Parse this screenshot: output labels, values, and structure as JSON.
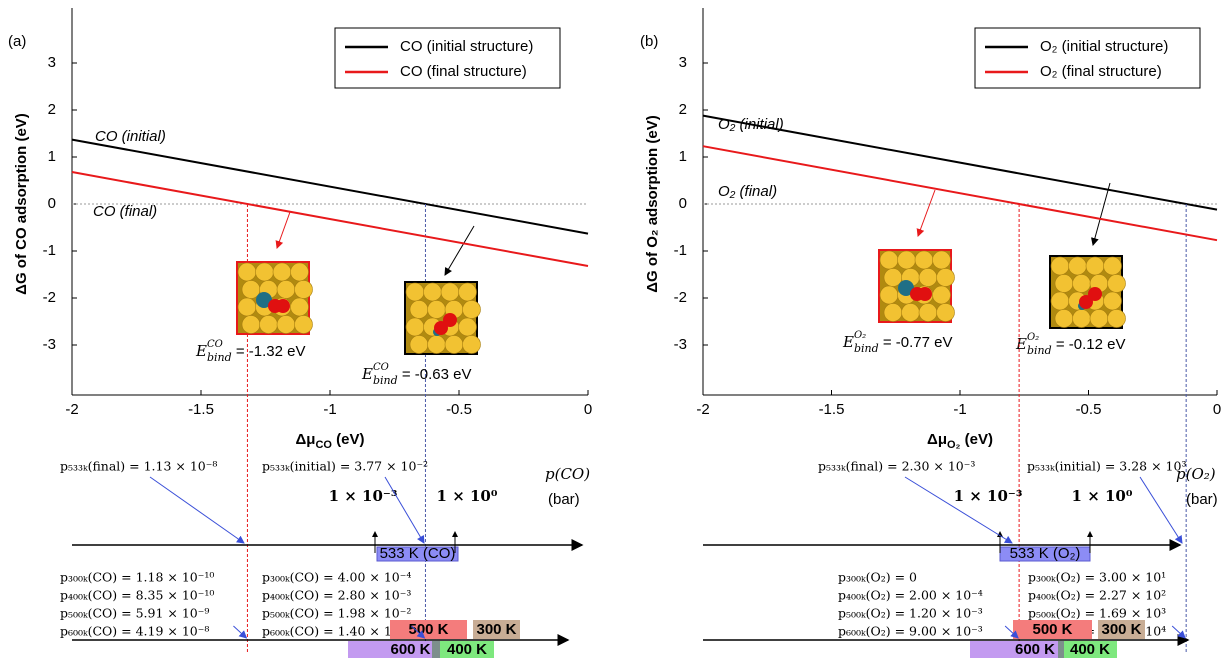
{
  "chart_data": [
    {
      "type": "line",
      "panel_label": "(a)",
      "y_label": "ΔG of CO adsorption (eV)",
      "x_label": {
        "base": "Δμ",
        "sub": "CO",
        "text": " (eV)"
      },
      "x": [
        -2,
        0
      ],
      "xlim": [
        -2,
        0
      ],
      "xticks": [
        -2,
        -1.5,
        -1,
        -0.5,
        0
      ],
      "ylim": [
        -4,
        4
      ],
      "yticks": [
        -3,
        -2,
        -1,
        0,
        1,
        2,
        3
      ],
      "zero_line": true,
      "legend": "upper right",
      "series": [
        {
          "name": "CO (initial structure)",
          "color": "#000000",
          "values": [
            1.37,
            -0.63
          ],
          "label": "CO (initial)",
          "binding": {
            "symbol": "E",
            "sub": "bind",
            "sup": "CO",
            "text": " = -0.63 eV"
          },
          "marker_color": "#4a5aa8"
        },
        {
          "name": "CO (final structure)",
          "color": "#e8191b",
          "values": [
            0.68,
            -1.32
          ],
          "label": "CO (final)",
          "binding": {
            "symbol": "E",
            "sub": "bind",
            "sup": "CO",
            "text": " = -1.32 eV"
          },
          "marker_color": "#e8191b"
        }
      ],
      "pressure": {
        "axis_label": "p(CO)",
        "unit": "(bar)",
        "ticks": [
          "1 × 10⁻³",
          "1 × 10⁰"
        ],
        "window": "533 K (CO)",
        "at_533K": [
          "p₅₃₃ₖ(final) = 1.13 × 10⁻⁸",
          "p₅₃₃ₖ(initial) = 3.77 × 10⁻²"
        ],
        "final_list": [
          "p₃₀₀ₖ(CO) = 1.18 × 10⁻¹⁰",
          "p₄₀₀ₖ(CO) = 8.35 × 10⁻¹⁰",
          "p₅₀₀ₖ(CO) = 5.91 × 10⁻⁹",
          "p₆₀₀ₖ(CO) = 4.19 × 10⁻⁸"
        ],
        "initial_list": [
          "p₃₀₀ₖ(CO) = 4.00 × 10⁻⁴",
          "p₄₀₀ₖ(CO) = 2.80 × 10⁻³",
          "p₅₀₀ₖ(CO) = 1.98 × 10⁻²",
          "p₆₀₀ₖ(CO) = 1.40 × 10⁻¹"
        ],
        "temperatures": [
          "500 K",
          "300 K",
          "600 K",
          "400 K"
        ]
      }
    },
    {
      "type": "line",
      "panel_label": "(b)",
      "y_label": "ΔG of O₂ adsorption (eV)",
      "x_label": {
        "base": "Δμ",
        "sub": "O₂",
        "text": " (eV)"
      },
      "x": [
        -2,
        0
      ],
      "xlim": [
        -2,
        0
      ],
      "xticks": [
        -2,
        -1.5,
        -1,
        -0.5,
        0
      ],
      "ylim": [
        -4,
        4
      ],
      "yticks": [
        -3,
        -2,
        -1,
        0,
        1,
        2,
        3
      ],
      "zero_line": true,
      "legend": "upper right",
      "series": [
        {
          "name": "O₂ (initial structure)",
          "color": "#000000",
          "values": [
            1.88,
            -0.12
          ],
          "label": "O₂ (initial)",
          "binding": {
            "symbol": "E",
            "sub": "bind",
            "sup": "O₂",
            "text": " = -0.12 eV"
          },
          "marker_color": "#4a5aa8"
        },
        {
          "name": "O₂ (final structure)",
          "color": "#e8191b",
          "values": [
            1.23,
            -0.77
          ],
          "label": "O₂ (final)",
          "binding": {
            "symbol": "E",
            "sub": "bind",
            "sup": "O₂",
            "text": " = -0.77 eV"
          },
          "marker_color": "#e8191b"
        }
      ],
      "pressure": {
        "axis_label": "p(O₂)",
        "unit": "(bar)",
        "ticks": [
          "1 × 10⁻³",
          "1 × 10⁰"
        ],
        "window": "533 K (O₂)",
        "at_533K": [
          "p₅₃₃ₖ(final) = 2.30 × 10⁻³",
          "p₅₃₃ₖ(initial) = 3.28 × 10³"
        ],
        "final_list": [
          "p₃₀₀ₖ(O₂) = 0",
          "p₄₀₀ₖ(O₂) = 2.00 × 10⁻⁴",
          "p₅₀₀ₖ(O₂) = 1.20 × 10⁻³",
          "p₆₀₀ₖ(O₂) = 9.00 × 10⁻³"
        ],
        "initial_list": [
          "p₃₀₀ₖ(O₂) = 3.00 × 10¹",
          "p₄₀₀ₖ(O₂) = 2.27 × 10²",
          "p₅₀₀ₖ(O₂) = 1.69 × 10³",
          "p₆₀₀ₖ(O₂) = 1.26 × 10⁴"
        ],
        "temperatures": [
          "500 K",
          "300 K",
          "600 K",
          "400 K"
        ]
      }
    }
  ]
}
